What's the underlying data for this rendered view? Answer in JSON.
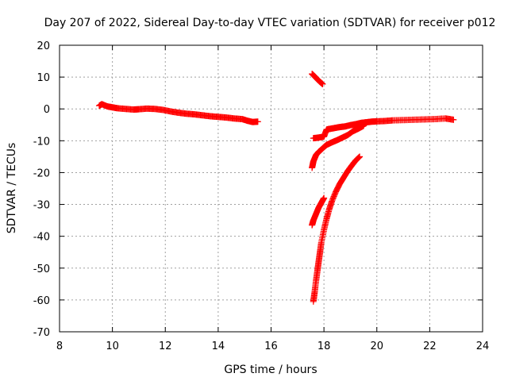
{
  "chart_data": {
    "type": "scatter",
    "title": "Day 207 of 2022, Sidereal Day-to-day VTEC variation (SDTVAR) for receiver p012",
    "xlabel": "GPS time / hours",
    "ylabel": "SDTVAR / TECUs",
    "xlim": [
      8,
      24
    ],
    "ylim": [
      -70,
      20
    ],
    "xticks": [
      8,
      10,
      12,
      14,
      16,
      18,
      20,
      22,
      24
    ],
    "yticks": [
      -70,
      -60,
      -50,
      -40,
      -30,
      -20,
      -10,
      0,
      10,
      20
    ],
    "grid": true,
    "marker": "plus",
    "color": "#ff0000",
    "series": [
      {
        "x": [
          9.5,
          9.6,
          9.8,
          10.0,
          10.2,
          10.5,
          10.8,
          11.0,
          11.3,
          11.6,
          11.9,
          12.2,
          12.5,
          12.8,
          13.1,
          13.4,
          13.7,
          14.0,
          14.3,
          14.6,
          14.9,
          15.1,
          15.3,
          15.5
        ],
        "y": [
          1.0,
          1.5,
          0.8,
          0.5,
          0.2,
          0.0,
          -0.2,
          -0.1,
          0.1,
          0.0,
          -0.3,
          -0.8,
          -1.2,
          -1.5,
          -1.7,
          -2.0,
          -2.3,
          -2.5,
          -2.7,
          -3.0,
          -3.2,
          -3.7,
          -4.1,
          -4.0
        ]
      },
      {
        "x": [
          17.55,
          17.65,
          17.75,
          17.85,
          17.95
        ],
        "y": [
          11.0,
          10.2,
          9.3,
          8.5,
          7.8
        ]
      },
      {
        "x": [
          17.6,
          17.8,
          18.0,
          18.1,
          18.2,
          18.4,
          18.6,
          18.8,
          19.0,
          19.2,
          19.4,
          19.6,
          19.8,
          20.0,
          20.3,
          20.6,
          21.0,
          21.4,
          21.8,
          22.2,
          22.6,
          22.9
        ],
        "y": [
          -9.2,
          -9.0,
          -8.7,
          -6.5,
          -6.3,
          -6.0,
          -5.7,
          -5.5,
          -5.1,
          -4.8,
          -4.4,
          -4.2,
          -4.0,
          -3.9,
          -3.8,
          -3.6,
          -3.5,
          -3.4,
          -3.3,
          -3.2,
          -3.0,
          -3.4
        ]
      },
      {
        "x": [
          17.55,
          17.6,
          17.7,
          17.8,
          17.9,
          18.0,
          18.1,
          18.3,
          18.5,
          18.7,
          18.9,
          19.1,
          19.3,
          19.5
        ],
        "y": [
          -18.5,
          -16.5,
          -14.5,
          -13.5,
          -12.8,
          -12.0,
          -11.3,
          -10.5,
          -9.8,
          -9.0,
          -8.2,
          -7.0,
          -6.2,
          -5.3
        ]
      },
      {
        "x": [
          17.55,
          17.6,
          17.7,
          17.8,
          17.9,
          18.0
        ],
        "y": [
          -36.5,
          -35.0,
          -33.0,
          -31.0,
          -29.5,
          -28.0
        ]
      },
      {
        "x": [
          17.6,
          17.65,
          17.7,
          17.75,
          17.8,
          17.85,
          17.9,
          18.0,
          18.1,
          18.2,
          18.3,
          18.45,
          18.6,
          18.75,
          18.9,
          19.05,
          19.2,
          19.35
        ],
        "y": [
          -60.5,
          -57.5,
          -54.0,
          -51.0,
          -48.0,
          -45.0,
          -42.0,
          -38.0,
          -34.5,
          -31.5,
          -29.0,
          -26.0,
          -23.5,
          -21.5,
          -19.5,
          -17.8,
          -16.2,
          -15.0
        ]
      }
    ]
  }
}
